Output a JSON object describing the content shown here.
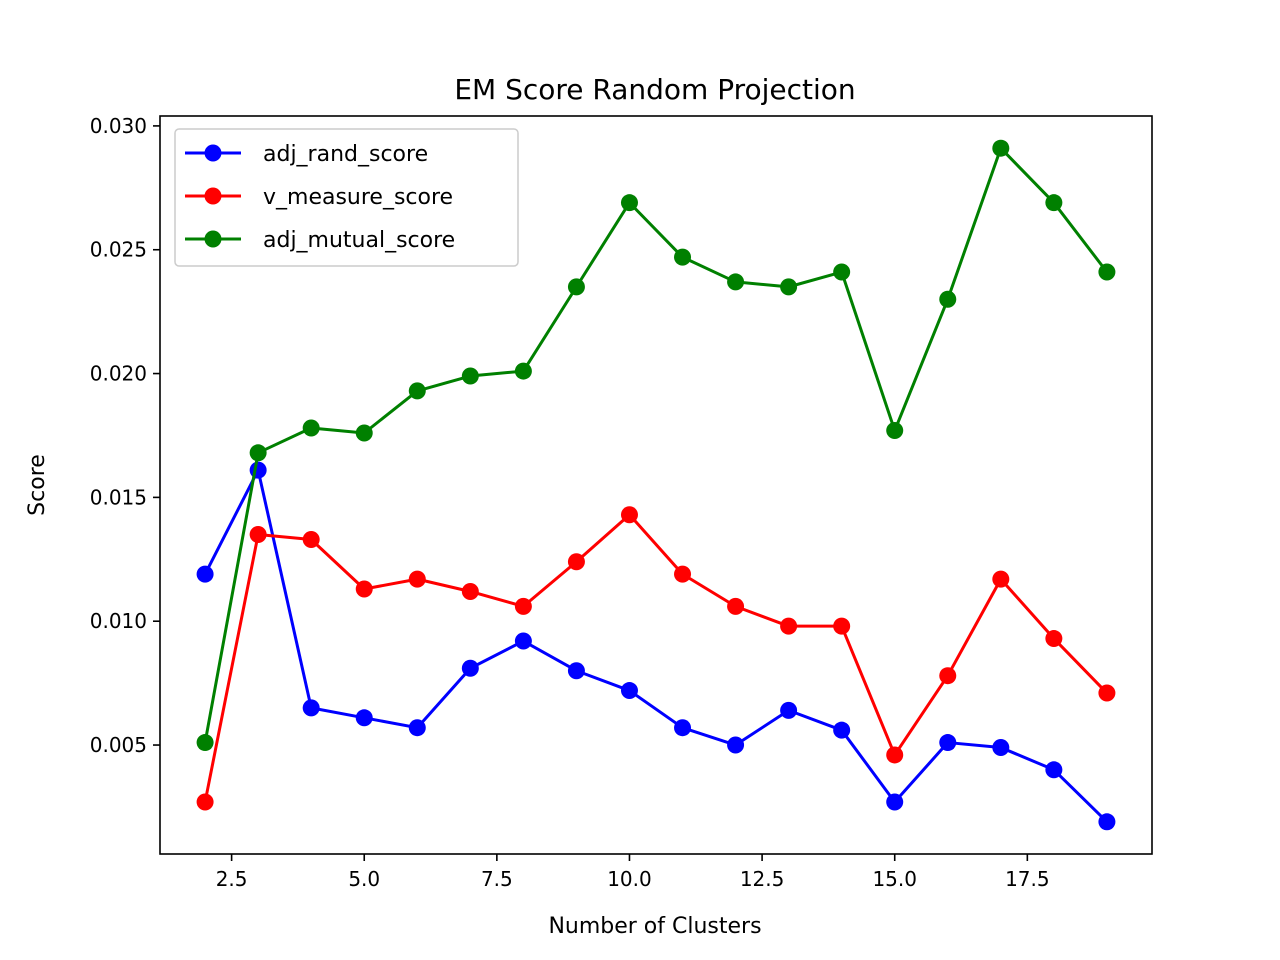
{
  "chart_data": {
    "type": "line",
    "title": "EM Score Random Projection",
    "xlabel": "Number of Clusters",
    "ylabel": "Score",
    "xlim": [
      1.15,
      19.85
    ],
    "ylim": [
      0.0006,
      0.0304
    ],
    "x_ticks": [
      2.5,
      5.0,
      7.5,
      10.0,
      12.5,
      15.0,
      17.5
    ],
    "x_tick_labels": [
      "2.5",
      "5.0",
      "7.5",
      "10.0",
      "12.5",
      "15.0",
      "17.5"
    ],
    "y_ticks": [
      0.005,
      0.01,
      0.015,
      0.02,
      0.025,
      0.03
    ],
    "y_tick_labels": [
      "0.005",
      "0.010",
      "0.015",
      "0.020",
      "0.025",
      "0.030"
    ],
    "grid": false,
    "legend_position": "top-left",
    "x": [
      2,
      3,
      4,
      5,
      6,
      7,
      8,
      9,
      10,
      11,
      12,
      13,
      14,
      15,
      16,
      17,
      18,
      19
    ],
    "series": [
      {
        "name": "adj_rand_score",
        "color": "#0000ff",
        "values": [
          0.0119,
          0.0161,
          0.0065,
          0.0061,
          0.0057,
          0.0081,
          0.0092,
          0.008,
          0.0072,
          0.0057,
          0.005,
          0.0064,
          0.0056,
          0.0027,
          0.0051,
          0.0049,
          0.004,
          0.0019
        ]
      },
      {
        "name": "v_measure_score",
        "color": "#ff0000",
        "values": [
          0.0027,
          0.0135,
          0.0133,
          0.0113,
          0.0117,
          0.0112,
          0.0106,
          0.0124,
          0.0143,
          0.0119,
          0.0106,
          0.0098,
          0.0098,
          0.0046,
          0.0078,
          0.0117,
          0.0093,
          0.0071
        ]
      },
      {
        "name": "adj_mutual_score",
        "color": "#008000",
        "values": [
          0.0051,
          0.0168,
          0.0178,
          0.0176,
          0.0193,
          0.0199,
          0.0201,
          0.0235,
          0.0269,
          0.0247,
          0.0237,
          0.0235,
          0.0241,
          0.0177,
          0.023,
          0.0291,
          0.0269,
          0.0241
        ]
      }
    ]
  }
}
